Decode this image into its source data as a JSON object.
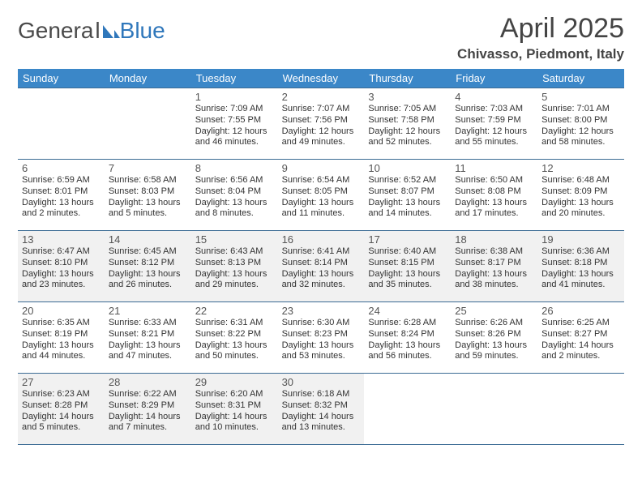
{
  "logo": {
    "general": "Genera",
    "l": "l",
    "blue": "Blue",
    "shape_color": "#2f77bb"
  },
  "title": "April 2025",
  "location": "Chivasso, Piedmont, Italy",
  "colors": {
    "header_bg": "#3b87c8",
    "header_fg": "#ffffff",
    "rule": "#3b6b94",
    "shade": "#f1f1f1",
    "text": "#333333"
  },
  "weekdays": [
    "Sunday",
    "Monday",
    "Tuesday",
    "Wednesday",
    "Thursday",
    "Friday",
    "Saturday"
  ],
  "cells": [
    {
      "blank": true
    },
    {
      "blank": true
    },
    {
      "day": "1",
      "sunrise": "Sunrise: 7:09 AM",
      "sunset": "Sunset: 7:55 PM",
      "daylight": "Daylight: 12 hours and 46 minutes."
    },
    {
      "day": "2",
      "sunrise": "Sunrise: 7:07 AM",
      "sunset": "Sunset: 7:56 PM",
      "daylight": "Daylight: 12 hours and 49 minutes."
    },
    {
      "day": "3",
      "sunrise": "Sunrise: 7:05 AM",
      "sunset": "Sunset: 7:58 PM",
      "daylight": "Daylight: 12 hours and 52 minutes."
    },
    {
      "day": "4",
      "sunrise": "Sunrise: 7:03 AM",
      "sunset": "Sunset: 7:59 PM",
      "daylight": "Daylight: 12 hours and 55 minutes."
    },
    {
      "day": "5",
      "sunrise": "Sunrise: 7:01 AM",
      "sunset": "Sunset: 8:00 PM",
      "daylight": "Daylight: 12 hours and 58 minutes."
    },
    {
      "day": "6",
      "sunrise": "Sunrise: 6:59 AM",
      "sunset": "Sunset: 8:01 PM",
      "daylight": "Daylight: 13 hours and 2 minutes."
    },
    {
      "day": "7",
      "sunrise": "Sunrise: 6:58 AM",
      "sunset": "Sunset: 8:03 PM",
      "daylight": "Daylight: 13 hours and 5 minutes."
    },
    {
      "day": "8",
      "sunrise": "Sunrise: 6:56 AM",
      "sunset": "Sunset: 8:04 PM",
      "daylight": "Daylight: 13 hours and 8 minutes."
    },
    {
      "day": "9",
      "sunrise": "Sunrise: 6:54 AM",
      "sunset": "Sunset: 8:05 PM",
      "daylight": "Daylight: 13 hours and 11 minutes."
    },
    {
      "day": "10",
      "sunrise": "Sunrise: 6:52 AM",
      "sunset": "Sunset: 8:07 PM",
      "daylight": "Daylight: 13 hours and 14 minutes."
    },
    {
      "day": "11",
      "sunrise": "Sunrise: 6:50 AM",
      "sunset": "Sunset: 8:08 PM",
      "daylight": "Daylight: 13 hours and 17 minutes."
    },
    {
      "day": "12",
      "sunrise": "Sunrise: 6:48 AM",
      "sunset": "Sunset: 8:09 PM",
      "daylight": "Daylight: 13 hours and 20 minutes."
    },
    {
      "day": "13",
      "shade": true,
      "sunrise": "Sunrise: 6:47 AM",
      "sunset": "Sunset: 8:10 PM",
      "daylight": "Daylight: 13 hours and 23 minutes."
    },
    {
      "day": "14",
      "shade": true,
      "sunrise": "Sunrise: 6:45 AM",
      "sunset": "Sunset: 8:12 PM",
      "daylight": "Daylight: 13 hours and 26 minutes."
    },
    {
      "day": "15",
      "shade": true,
      "sunrise": "Sunrise: 6:43 AM",
      "sunset": "Sunset: 8:13 PM",
      "daylight": "Daylight: 13 hours and 29 minutes."
    },
    {
      "day": "16",
      "shade": true,
      "sunrise": "Sunrise: 6:41 AM",
      "sunset": "Sunset: 8:14 PM",
      "daylight": "Daylight: 13 hours and 32 minutes."
    },
    {
      "day": "17",
      "shade": true,
      "sunrise": "Sunrise: 6:40 AM",
      "sunset": "Sunset: 8:15 PM",
      "daylight": "Daylight: 13 hours and 35 minutes."
    },
    {
      "day": "18",
      "shade": true,
      "sunrise": "Sunrise: 6:38 AM",
      "sunset": "Sunset: 8:17 PM",
      "daylight": "Daylight: 13 hours and 38 minutes."
    },
    {
      "day": "19",
      "shade": true,
      "sunrise": "Sunrise: 6:36 AM",
      "sunset": "Sunset: 8:18 PM",
      "daylight": "Daylight: 13 hours and 41 minutes."
    },
    {
      "day": "20",
      "sunrise": "Sunrise: 6:35 AM",
      "sunset": "Sunset: 8:19 PM",
      "daylight": "Daylight: 13 hours and 44 minutes."
    },
    {
      "day": "21",
      "sunrise": "Sunrise: 6:33 AM",
      "sunset": "Sunset: 8:21 PM",
      "daylight": "Daylight: 13 hours and 47 minutes."
    },
    {
      "day": "22",
      "sunrise": "Sunrise: 6:31 AM",
      "sunset": "Sunset: 8:22 PM",
      "daylight": "Daylight: 13 hours and 50 minutes."
    },
    {
      "day": "23",
      "sunrise": "Sunrise: 6:30 AM",
      "sunset": "Sunset: 8:23 PM",
      "daylight": "Daylight: 13 hours and 53 minutes."
    },
    {
      "day": "24",
      "sunrise": "Sunrise: 6:28 AM",
      "sunset": "Sunset: 8:24 PM",
      "daylight": "Daylight: 13 hours and 56 minutes."
    },
    {
      "day": "25",
      "sunrise": "Sunrise: 6:26 AM",
      "sunset": "Sunset: 8:26 PM",
      "daylight": "Daylight: 13 hours and 59 minutes."
    },
    {
      "day": "26",
      "sunrise": "Sunrise: 6:25 AM",
      "sunset": "Sunset: 8:27 PM",
      "daylight": "Daylight: 14 hours and 2 minutes."
    },
    {
      "day": "27",
      "shade": true,
      "sunrise": "Sunrise: 6:23 AM",
      "sunset": "Sunset: 8:28 PM",
      "daylight": "Daylight: 14 hours and 5 minutes."
    },
    {
      "day": "28",
      "shade": true,
      "sunrise": "Sunrise: 6:22 AM",
      "sunset": "Sunset: 8:29 PM",
      "daylight": "Daylight: 14 hours and 7 minutes."
    },
    {
      "day": "29",
      "shade": true,
      "sunrise": "Sunrise: 6:20 AM",
      "sunset": "Sunset: 8:31 PM",
      "daylight": "Daylight: 14 hours and 10 minutes."
    },
    {
      "day": "30",
      "shade": true,
      "sunrise": "Sunrise: 6:18 AM",
      "sunset": "Sunset: 8:32 PM",
      "daylight": "Daylight: 14 hours and 13 minutes."
    },
    {
      "blank": true
    },
    {
      "blank": true
    },
    {
      "blank": true
    }
  ]
}
